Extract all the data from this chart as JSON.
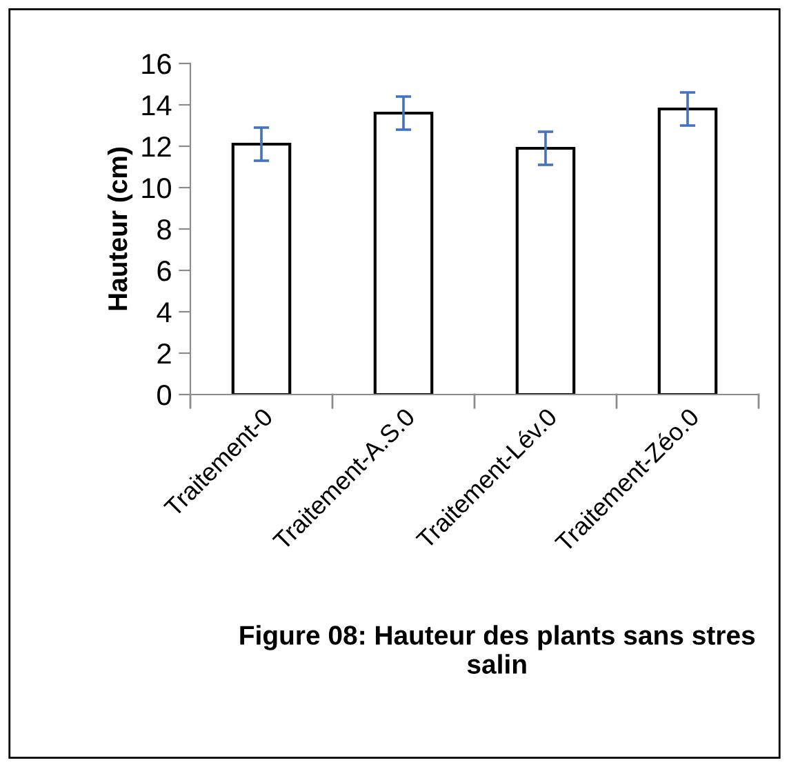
{
  "chart_data": {
    "type": "bar",
    "ylabel": "Hauteur (cm)",
    "categories": [
      "Traitement-0",
      "Traitement-A.S.0",
      "Traitement-Lév.0",
      "Traitement-Zéo.0"
    ],
    "values": [
      12.1,
      13.6,
      11.9,
      13.8
    ],
    "errors": [
      0.8,
      0.8,
      0.8,
      0.8
    ],
    "colors": [
      "#ffffff",
      "#ffffff",
      "#ffffff",
      "#ffffff"
    ],
    "ylim": [
      0,
      16
    ],
    "yticks": [
      0,
      2,
      4,
      6,
      8,
      10,
      12,
      14,
      16
    ],
    "grid": false,
    "legend": false,
    "annotations": [
      "Figure 08: Hauteur des plants sans stres salin"
    ]
  }
}
